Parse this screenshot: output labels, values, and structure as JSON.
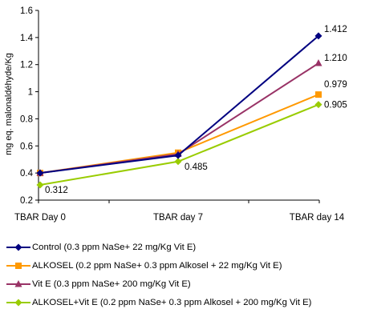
{
  "chart_data": {
    "type": "line",
    "title": "",
    "xlabel": "",
    "ylabel": "mg eq. malonaldéhyde/Kg",
    "categories": [
      "TBAR Day 0",
      "TBAR day 7",
      "TBAR day 14"
    ],
    "ylim": [
      0.2,
      1.6
    ],
    "yticks": [
      "0.2",
      "0.4",
      "0.6",
      "0.8",
      "1",
      "1.2",
      "1.4",
      "1.6"
    ],
    "grid": false,
    "legend_position": "bottom",
    "series": [
      {
        "name": "Control (0.3 ppm NaSe+ 22 mg/Kg Vit E)",
        "color": "#000080",
        "marker": "diamond",
        "values": [
          0.4,
          0.53,
          1.412
        ]
      },
      {
        "name": "ALKOSEL (0.2 ppm NaSe+ 0.3 ppm Alkosel + 22 mg/Kg Vit E)",
        "color": "#ff9900",
        "marker": "square",
        "values": [
          0.4,
          0.55,
          0.979
        ]
      },
      {
        "name": "Vit E (0.3 ppm NaSe+ 200 mg/Kg Vit E)",
        "color": "#993366",
        "marker": "triangle",
        "values": [
          0.4,
          0.54,
          1.21
        ]
      },
      {
        "name": "ALKOSEL+Vit E (0.2 ppm NaSe+ 0.3 ppm Alkosel + 200 mg/Kg Vit E)",
        "color": "#99cc00",
        "marker": "diamond",
        "values": [
          0.312,
          0.485,
          0.905
        ]
      }
    ],
    "data_labels": [
      {
        "series": 0,
        "point": 2,
        "text": "1.412"
      },
      {
        "series": 2,
        "point": 2,
        "text": "1.210"
      },
      {
        "series": 1,
        "point": 2,
        "text": "0.979"
      },
      {
        "series": 3,
        "point": 2,
        "text": "0.905"
      },
      {
        "series": 3,
        "point": 1,
        "text": "0.485"
      },
      {
        "series": 3,
        "point": 0,
        "text": "0.312"
      }
    ]
  }
}
